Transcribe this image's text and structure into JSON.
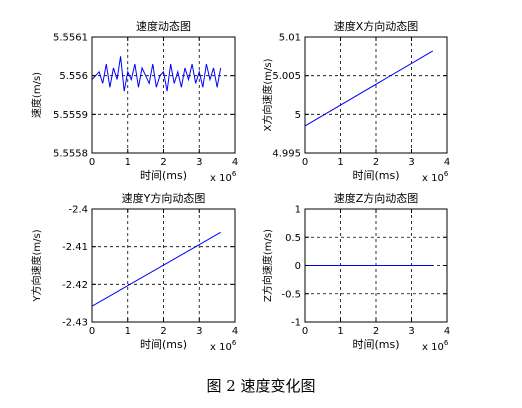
{
  "caption": "图 2  速度变化图",
  "colors": {
    "line": "#0000ff",
    "axes": "#000000",
    "grid": "#000000",
    "background": "#ffffff"
  },
  "chart_data": [
    {
      "type": "line",
      "title": "速度动态图",
      "xlabel": "时间(ms)",
      "ylabel": "速度(m/s)",
      "x_multiplier_label": "x 10^6",
      "xlim": [
        0,
        4
      ],
      "ylim": [
        5.5558,
        5.5561
      ],
      "xticks": [
        0,
        1,
        2,
        3,
        4
      ],
      "yticks": [
        5.5558,
        5.5559,
        5.556,
        5.5561
      ],
      "xtick_labels": [
        "0",
        "1",
        "2",
        "3",
        "4"
      ],
      "ytick_labels": [
        "5.5558",
        "5.5559",
        "5.556",
        "5.5561"
      ],
      "grid": true,
      "grid_style": "dashed",
      "series": [
        {
          "x": [
            0.0,
            0.1,
            0.2,
            0.3,
            0.4,
            0.5,
            0.6,
            0.7,
            0.8,
            0.9,
            1.0,
            1.1,
            1.2,
            1.3,
            1.4,
            1.5,
            1.6,
            1.7,
            1.8,
            1.9,
            2.0,
            2.1,
            2.2,
            2.3,
            2.4,
            2.5,
            2.6,
            2.7,
            2.8,
            2.9,
            3.0,
            3.1,
            3.2,
            3.3,
            3.4,
            3.5,
            3.6
          ],
          "y": [
            5.55599,
            5.556,
            5.55601,
            5.55598,
            5.55603,
            5.55597,
            5.55602,
            5.55599,
            5.55605,
            5.55596,
            5.55601,
            5.55599,
            5.55603,
            5.55597,
            5.55602,
            5.556,
            5.55598,
            5.55603,
            5.55597,
            5.556,
            5.55601,
            5.55596,
            5.55603,
            5.55598,
            5.55601,
            5.55597,
            5.55602,
            5.55599,
            5.55603,
            5.55598,
            5.55601,
            5.55597,
            5.55603,
            5.55599,
            5.55602,
            5.55597,
            5.55602
          ]
        }
      ]
    },
    {
      "type": "line",
      "title": "速度X方向动态图",
      "xlabel": "时间(ms)",
      "ylabel": "X方向速度(m/s)",
      "x_multiplier_label": "x 10^6",
      "xlim": [
        0,
        4
      ],
      "ylim": [
        4.995,
        5.01
      ],
      "xticks": [
        0,
        1,
        2,
        3,
        4
      ],
      "yticks": [
        4.995,
        5.0,
        5.005,
        5.01
      ],
      "xtick_labels": [
        "0",
        "1",
        "2",
        "3",
        "4"
      ],
      "ytick_labels": [
        "4.995",
        "5",
        "5.005",
        "5.01"
      ],
      "grid": true,
      "grid_style": "dashed",
      "series": [
        {
          "x": [
            0,
            3.6
          ],
          "y": [
            4.9985,
            5.0082
          ]
        }
      ]
    },
    {
      "type": "line",
      "title": "速度Y方向动态图",
      "xlabel": "时间(ms)",
      "ylabel": "Y方向速度(m/s)",
      "x_multiplier_label": "x 10^6",
      "xlim": [
        0,
        4
      ],
      "ylim": [
        -2.43,
        -2.4
      ],
      "xticks": [
        0,
        1,
        2,
        3,
        4
      ],
      "yticks": [
        -2.43,
        -2.42,
        -2.41,
        -2.4
      ],
      "xtick_labels": [
        "0",
        "1",
        "2",
        "3",
        "4"
      ],
      "ytick_labels": [
        "-2.43",
        "-2.42",
        "-2.41",
        "-2.4"
      ],
      "grid": true,
      "grid_style": "dashed",
      "series": [
        {
          "x": [
            0,
            3.6
          ],
          "y": [
            -2.4258,
            -2.4062
          ]
        }
      ]
    },
    {
      "type": "line",
      "title": "速度Z方向动态图",
      "xlabel": "时间(ms)",
      "ylabel": "Z方向速度(m/s)",
      "x_multiplier_label": "x 10^6",
      "xlim": [
        0,
        4
      ],
      "ylim": [
        -1,
        1
      ],
      "xticks": [
        0,
        1,
        2,
        3,
        4
      ],
      "yticks": [
        -1,
        -0.5,
        0,
        0.5,
        1
      ],
      "xtick_labels": [
        "0",
        "1",
        "2",
        "3",
        "4"
      ],
      "ytick_labels": [
        "-1",
        "-0.5",
        "0",
        "0.5",
        "1"
      ],
      "grid": true,
      "grid_style": "dashed",
      "series": [
        {
          "x": [
            0,
            3.6
          ],
          "y": [
            0,
            0
          ]
        }
      ]
    }
  ]
}
